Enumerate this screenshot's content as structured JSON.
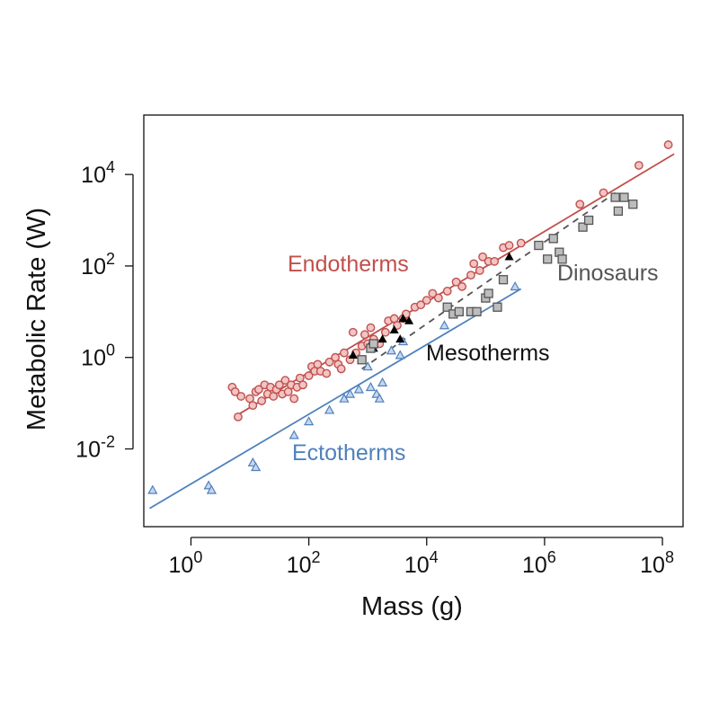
{
  "chart_data": {
    "type": "scatter",
    "xscale": "log10",
    "yscale": "log10",
    "xlim_log10": [
      -0.8,
      8.35
    ],
    "ylim_log10": [
      -3.7,
      5.3
    ],
    "xlabel": "Mass  (g)",
    "ylabel": "Metabolic Rate (W)",
    "xticks": [
      {
        "exp": 0,
        "base": "10",
        "sup": "0"
      },
      {
        "exp": 2,
        "base": "10",
        "sup": "2"
      },
      {
        "exp": 4,
        "base": "10",
        "sup": "4"
      },
      {
        "exp": 6,
        "base": "10",
        "sup": "6"
      },
      {
        "exp": 8,
        "base": "10",
        "sup": "8"
      }
    ],
    "yticks": [
      {
        "exp": -2,
        "base": "10",
        "sup": "-2"
      },
      {
        "exp": 0,
        "base": "10",
        "sup": "0"
      },
      {
        "exp": 2,
        "base": "10",
        "sup": "2"
      },
      {
        "exp": 4,
        "base": "10",
        "sup": "4"
      }
    ],
    "grid": false,
    "series": [
      {
        "name": "Endotherms",
        "label": "Endotherms",
        "marker": "circle",
        "color": "#c0504d",
        "fill": "#f2c4c3",
        "fit_log10": {
          "x": [
            0.8,
            8.2
          ],
          "y": [
            -1.25,
            4.45
          ]
        },
        "points_log10": [
          [
            0.7,
            -0.65
          ],
          [
            0.75,
            -0.75
          ],
          [
            0.8,
            -1.3
          ],
          [
            0.85,
            -0.85
          ],
          [
            1.0,
            -0.9
          ],
          [
            1.05,
            -1.05
          ],
          [
            1.1,
            -0.75
          ],
          [
            1.15,
            -0.7
          ],
          [
            1.2,
            -0.95
          ],
          [
            1.25,
            -0.6
          ],
          [
            1.3,
            -0.8
          ],
          [
            1.35,
            -0.65
          ],
          [
            1.4,
            -0.85
          ],
          [
            1.45,
            -0.7
          ],
          [
            1.5,
            -0.6
          ],
          [
            1.55,
            -0.8
          ],
          [
            1.6,
            -0.5
          ],
          [
            1.65,
            -0.75
          ],
          [
            1.7,
            -0.6
          ],
          [
            1.75,
            -0.9
          ],
          [
            1.8,
            -0.65
          ],
          [
            1.85,
            -0.45
          ],
          [
            1.9,
            -0.6
          ],
          [
            2.0,
            -0.4
          ],
          [
            2.05,
            -0.2
          ],
          [
            2.1,
            -0.3
          ],
          [
            2.15,
            -0.15
          ],
          [
            2.2,
            -0.3
          ],
          [
            2.3,
            -0.35
          ],
          [
            2.35,
            -0.1
          ],
          [
            2.45,
            0.0
          ],
          [
            2.5,
            -0.15
          ],
          [
            2.55,
            -0.25
          ],
          [
            2.6,
            0.1
          ],
          [
            2.7,
            -0.05
          ],
          [
            2.75,
            0.55
          ],
          [
            2.8,
            0.1
          ],
          [
            2.9,
            0.25
          ],
          [
            2.95,
            0.5
          ],
          [
            3.0,
            0.3
          ],
          [
            3.05,
            0.65
          ],
          [
            3.1,
            0.4
          ],
          [
            3.2,
            0.3
          ],
          [
            3.3,
            0.55
          ],
          [
            3.35,
            0.8
          ],
          [
            3.45,
            0.85
          ],
          [
            3.5,
            0.7
          ],
          [
            3.6,
            0.85
          ],
          [
            3.65,
            0.95
          ],
          [
            3.8,
            1.1
          ],
          [
            3.9,
            1.15
          ],
          [
            4.0,
            1.25
          ],
          [
            4.1,
            1.4
          ],
          [
            4.2,
            1.3
          ],
          [
            4.35,
            1.45
          ],
          [
            4.5,
            1.65
          ],
          [
            4.6,
            1.55
          ],
          [
            4.75,
            1.8
          ],
          [
            4.8,
            2.05
          ],
          [
            4.9,
            1.9
          ],
          [
            4.95,
            2.2
          ],
          [
            5.05,
            2.1
          ],
          [
            5.15,
            2.1
          ],
          [
            5.3,
            2.4
          ],
          [
            5.4,
            2.45
          ],
          [
            5.6,
            2.5
          ],
          [
            6.6,
            3.35
          ],
          [
            7.0,
            3.6
          ],
          [
            7.6,
            4.2
          ],
          [
            8.1,
            4.65
          ]
        ]
      },
      {
        "name": "Ectotherms",
        "label": "Ectotherms",
        "marker": "triangle",
        "color": "#4f81bd",
        "fill": "#c6d7ee",
        "fit_log10": {
          "x": [
            -0.7,
            5.6
          ],
          "y": [
            -3.3,
            1.5
          ]
        },
        "points_log10": [
          [
            -0.65,
            -2.9
          ],
          [
            0.3,
            -2.8
          ],
          [
            0.35,
            -2.9
          ],
          [
            1.05,
            -2.3
          ],
          [
            1.1,
            -2.4
          ],
          [
            1.75,
            -1.7
          ],
          [
            2.0,
            -1.4
          ],
          [
            2.35,
            -1.15
          ],
          [
            2.6,
            -0.9
          ],
          [
            2.7,
            -0.8
          ],
          [
            2.85,
            -0.7
          ],
          [
            3.0,
            -0.2
          ],
          [
            3.05,
            -0.65
          ],
          [
            3.15,
            -0.8
          ],
          [
            3.2,
            -0.9
          ],
          [
            3.25,
            -0.55
          ],
          [
            3.4,
            0.15
          ],
          [
            3.55,
            0.05
          ],
          [
            3.6,
            0.35
          ],
          [
            4.3,
            0.7
          ],
          [
            5.5,
            1.55
          ]
        ]
      },
      {
        "name": "Mesotherms",
        "label": "Mesotherms",
        "marker": "filled-triangle",
        "color": "#000000",
        "fill": "#000000",
        "points_log10": [
          [
            2.75,
            0.05
          ],
          [
            3.05,
            0.3
          ],
          [
            3.1,
            0.2
          ],
          [
            3.25,
            0.4
          ],
          [
            3.45,
            0.6
          ],
          [
            3.55,
            0.4
          ],
          [
            3.6,
            0.85
          ],
          [
            3.7,
            0.8
          ],
          [
            5.4,
            2.2
          ]
        ]
      },
      {
        "name": "Dinosaurs",
        "label": "Dinosaurs",
        "marker": "square",
        "color": "#555555",
        "fill": "#bdbdbd",
        "fit_log10": {
          "x": [
            2.9,
            7.2
          ],
          "y": [
            -0.25,
            3.6
          ]
        },
        "fit_dash": true,
        "points_log10": [
          [
            2.9,
            -0.05
          ],
          [
            3.05,
            0.2
          ],
          [
            3.1,
            0.3
          ],
          [
            4.35,
            1.1
          ],
          [
            4.45,
            0.95
          ],
          [
            4.55,
            1.0
          ],
          [
            4.75,
            1.0
          ],
          [
            4.85,
            1.0
          ],
          [
            5.0,
            1.3
          ],
          [
            5.05,
            1.4
          ],
          [
            5.2,
            1.1
          ],
          [
            5.3,
            1.7
          ],
          [
            5.9,
            2.45
          ],
          [
            6.05,
            2.15
          ],
          [
            6.15,
            2.6
          ],
          [
            6.25,
            2.3
          ],
          [
            6.3,
            2.15
          ],
          [
            6.65,
            2.85
          ],
          [
            6.75,
            3.0
          ],
          [
            7.2,
            3.5
          ],
          [
            7.25,
            3.2
          ],
          [
            7.35,
            3.5
          ],
          [
            7.5,
            3.35
          ]
        ]
      }
    ]
  }
}
